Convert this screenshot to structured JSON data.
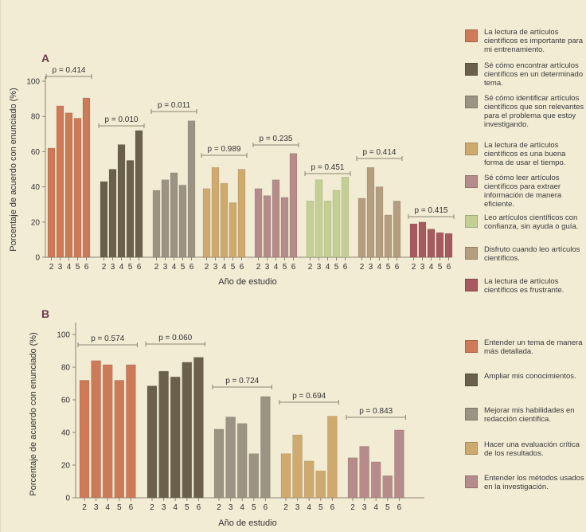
{
  "chart_data": [
    {
      "panel": "A",
      "type": "bar",
      "xlabel": "Año de estudio",
      "ylabel": "Porcentaje de acuerdo con enunciado (%)",
      "ylim": [
        0,
        100
      ],
      "yticks": [
        0,
        20,
        40,
        60,
        80,
        100
      ],
      "categories": [
        "2",
        "3",
        "4",
        "5",
        "6"
      ],
      "grid": false,
      "legend_position": "right",
      "series": [
        {
          "name": "La lectura de artículos científicos es importante para mi entrenamiento.",
          "color": "#cd7a58",
          "values": [
            62,
            86,
            82,
            79,
            90.5
          ],
          "p_value": "p = 0.414"
        },
        {
          "name": "Sé cómo encontrar artículos científicos en un determinado tema.",
          "color": "#6b604b",
          "values": [
            43,
            50,
            64,
            55,
            72
          ],
          "p_value": "p = 0.010"
        },
        {
          "name": "Sé cómo identificar artículos científicos que son relevantes para el problema que estoy investigando.",
          "color": "#9c9383",
          "values": [
            38,
            44,
            48,
            41,
            77.5
          ],
          "p_value": "p = 0.011"
        },
        {
          "name": "La lectura de artículos científicos es una buena forma de usar el tiempo.",
          "color": "#ceaa6e",
          "values": [
            39,
            51,
            42,
            31,
            50
          ],
          "p_value": "p = 0.989"
        },
        {
          "name": "Sé cómo leer artículos científicos para extraer información de manera eficiente.",
          "color": "#b58c89",
          "values": [
            39,
            35,
            44,
            34,
            59
          ],
          "p_value": "p = 0.235"
        },
        {
          "name": "Leo artículos científicos con confianza, sin ayuda o guía.",
          "color": "#c4cf95",
          "values": [
            32,
            44,
            32,
            38,
            45.5
          ],
          "p_value": "p = 0.451"
        },
        {
          "name": "Disfruto cuando leo artículos científicos.",
          "color": "#b59d7f",
          "values": [
            33.5,
            51,
            40,
            24,
            32
          ],
          "p_value": "p = 0.414"
        },
        {
          "name": "La lectura de artículos científicos es frustrante.",
          "color": "#a6595e",
          "values": [
            19,
            20,
            16,
            14,
            13.5
          ],
          "p_value": "p = 0.415"
        }
      ]
    },
    {
      "panel": "B",
      "type": "bar",
      "xlabel": "Año de estudio",
      "ylabel": "Porcentaje de acuerdo con enunciado (%)",
      "ylim": [
        0,
        100
      ],
      "yticks": [
        0,
        20,
        40,
        60,
        80,
        100
      ],
      "categories": [
        "2",
        "3",
        "4",
        "5",
        "6"
      ],
      "grid": false,
      "legend_position": "right",
      "series": [
        {
          "name": "Entender un tema de manera más detallada.",
          "color": "#cd7a58",
          "values": [
            72,
            84,
            81.5,
            72,
            81.5
          ],
          "p_value": "p = 0.574"
        },
        {
          "name": "Ampliar mis conocimientos.",
          "color": "#6b604b",
          "values": [
            68.5,
            77.5,
            74,
            83,
            86
          ],
          "p_value": "p = 0.060"
        },
        {
          "name": "Mejorar mis habilidades en redacción científica.",
          "color": "#9c9383",
          "values": [
            42,
            49.5,
            45.5,
            27,
            62
          ],
          "p_value": "p = 0.724"
        },
        {
          "name": "Hacer una evaluación crítica de los resultados.",
          "color": "#ceaa6e",
          "values": [
            27,
            38.5,
            22.5,
            16.5,
            50
          ],
          "p_value": "p = 0.694"
        },
        {
          "name": "Entender los métodos usados en la investigación.",
          "color": "#b58c89",
          "values": [
            24.5,
            31.5,
            22,
            13.5,
            41.5
          ],
          "p_value": "p = 0.843"
        }
      ]
    }
  ]
}
